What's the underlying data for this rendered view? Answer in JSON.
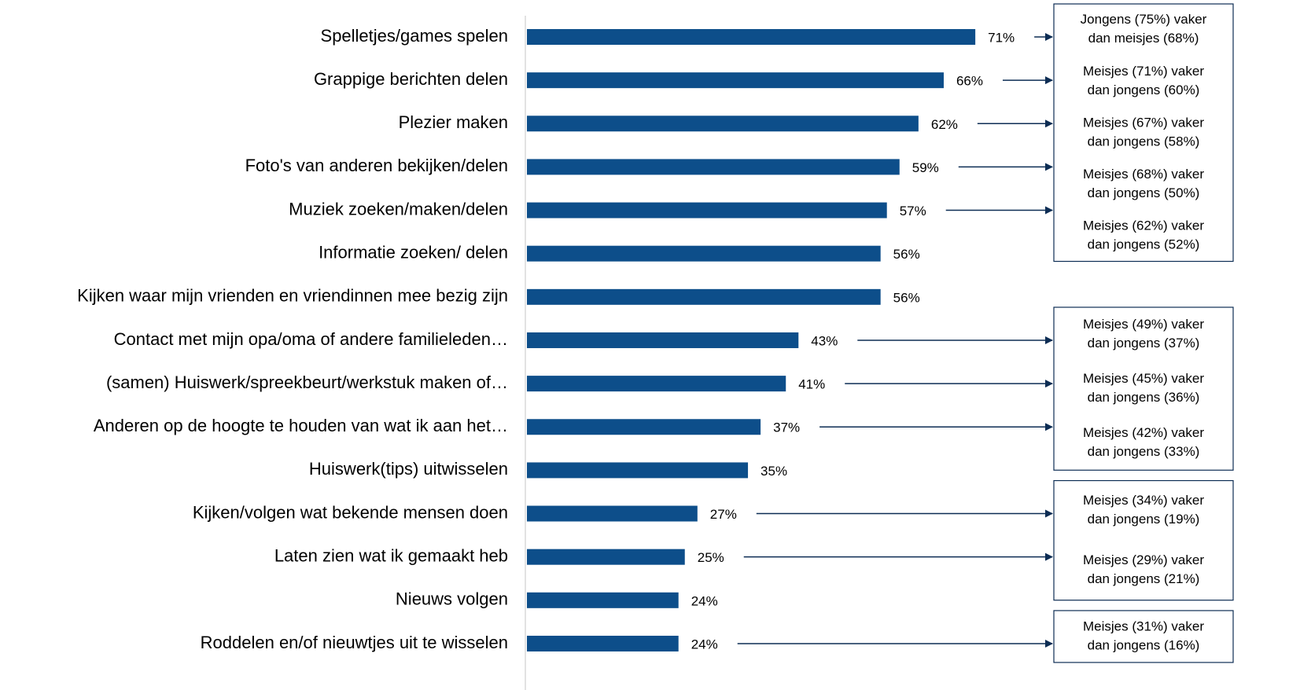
{
  "chart_data": {
    "type": "bar",
    "orientation": "horizontal",
    "color": "#0d4e8a",
    "xlim": [
      0,
      100
    ],
    "categories": [
      "Spelletjes/games spelen",
      "Grappige berichten delen",
      "Plezier maken",
      "Foto's van anderen bekijken/delen",
      "Muziek zoeken/maken/delen",
      "Informatie zoeken/ delen",
      "Kijken waar mijn vrienden en vriendinnen mee bezig zijn",
      "Contact met mijn opa/oma of andere familieleden…",
      "(samen) Huiswerk/spreekbeurt/werkstuk maken of…",
      "Anderen op de hoogte te houden van wat ik aan het…",
      "Huiswerk(tips) uitwisselen",
      "Kijken/volgen wat bekende mensen doen",
      "Laten zien wat ik gemaakt heb",
      "Nieuws volgen",
      "Roddelen en/of nieuwtjes uit te wisselen"
    ],
    "values": [
      71,
      66,
      62,
      59,
      57,
      56,
      56,
      43,
      41,
      37,
      35,
      27,
      25,
      24,
      24
    ],
    "value_labels": [
      "71%",
      "66%",
      "62%",
      "59%",
      "57%",
      "56%",
      "56%",
      "43%",
      "41%",
      "37%",
      "35%",
      "27%",
      "25%",
      "24%",
      "24%"
    ],
    "annotations": [
      [
        "Jongens (75%) vaker",
        "dan meisjes (68%)"
      ],
      [
        "Meisjes (71%) vaker",
        "dan jongens (60%)"
      ],
      [
        "Meisjes (67%) vaker",
        "dan jongens (58%)"
      ],
      [
        "Meisjes (68%) vaker",
        "dan jongens (50%)"
      ],
      [
        "Meisjes (62%) vaker",
        "dan jongens (52%)"
      ],
      null,
      null,
      [
        "Meisjes (49%) vaker",
        "dan jongens (37%)"
      ],
      [
        "Meisjes (45%) vaker",
        "dan jongens (36%)"
      ],
      [
        "Meisjes (42%) vaker",
        "dan jongens (33%)"
      ],
      null,
      [
        "Meisjes (34%) vaker",
        "dan jongens (19%)"
      ],
      [
        "Meisjes (29%) vaker",
        "dan jongens (21%)"
      ],
      null,
      [
        "Meisjes (31%) vaker",
        "dan jongens (16%)"
      ]
    ]
  }
}
